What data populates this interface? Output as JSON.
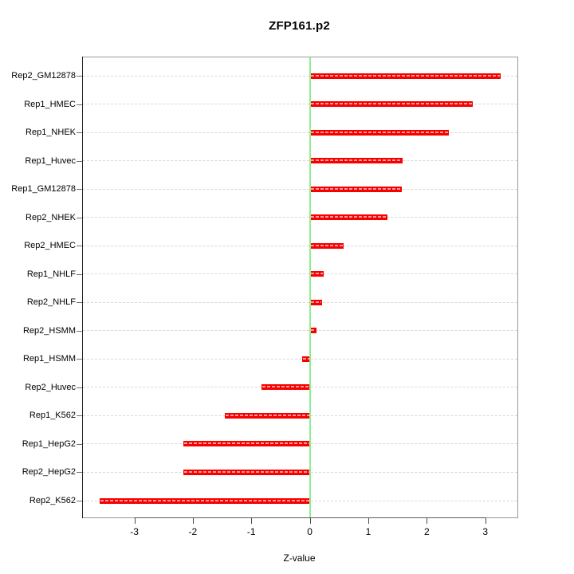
{
  "chart_data": {
    "type": "bar",
    "orientation": "horizontal",
    "title": "ZFP161.p2",
    "xlabel": "Z-value",
    "ylabel": "",
    "categories": [
      "Rep2_GM12878",
      "Rep1_HMEC",
      "Rep1_NHEK",
      "Rep1_Huvec",
      "Rep1_GM12878",
      "Rep2_NHEK",
      "Rep2_HMEC",
      "Rep1_NHLF",
      "Rep2_NHLF",
      "Rep2_HSMM",
      "Rep1_HSMM",
      "Rep2_Huvec",
      "Rep1_K562",
      "Rep1_HepG2",
      "Rep2_HepG2",
      "Rep2_K562"
    ],
    "values": [
      3.27,
      2.78,
      2.38,
      1.59,
      1.57,
      1.33,
      0.58,
      0.24,
      0.21,
      0.12,
      -0.13,
      -0.83,
      -1.46,
      -2.16,
      -2.16,
      -3.6
    ],
    "xticks": [
      -3,
      -2,
      -1,
      0,
      1,
      2,
      3
    ],
    "xlim": [
      -3.88,
      3.55
    ],
    "grid": "dashed horizontal per category",
    "legend": "none",
    "colors": {
      "bar": "#f60000",
      "bar_stripe": "#ff9b9b",
      "zero_line": "#8fee8f",
      "gridline": "#d8d8d8",
      "box_border": "#9a9a9a",
      "axis_line": "#2a2a2a",
      "text": "#000000"
    }
  }
}
